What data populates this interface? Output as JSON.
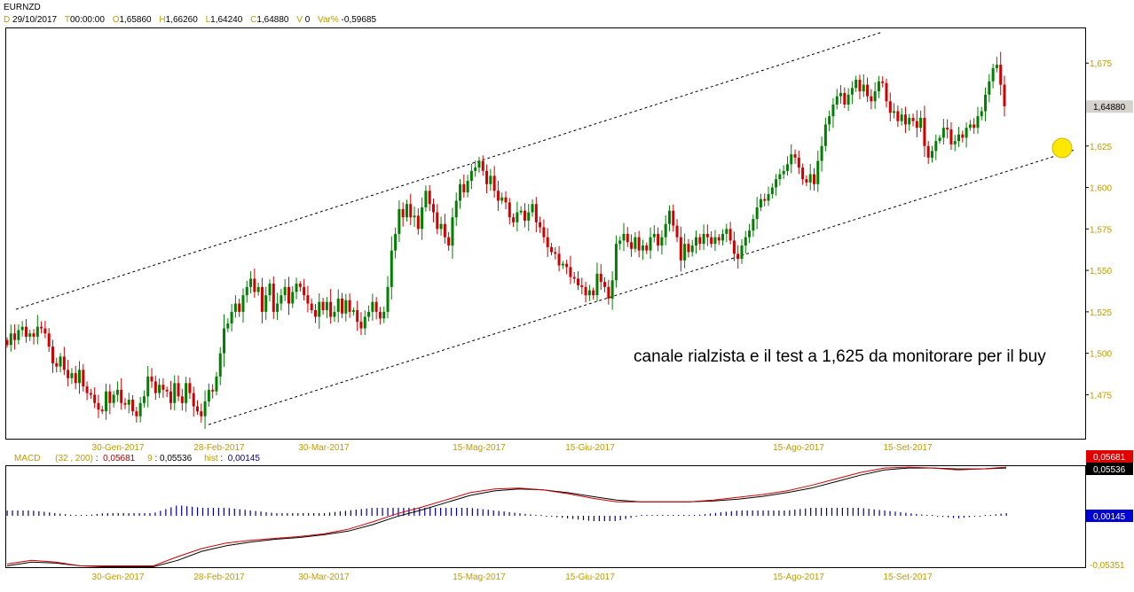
{
  "header": {
    "symbol": "EURNZD",
    "d_label": "D",
    "date": "29/10/2017",
    "t_label": "T",
    "time": "00:00:00",
    "o_label": "O",
    "open": "1,65860",
    "h_label": "H",
    "high": "1,66260",
    "l_label": "L",
    "low": "1,64240",
    "c_label": "C",
    "close": "1,64880",
    "v_label": "V",
    "volume": "0",
    "var_label": "Var%",
    "var": "-0,59685"
  },
  "macd_header": {
    "name": "MACD",
    "params": "(32 , 200)",
    "macd_value": "0,05681",
    "signal_label": "9",
    "signal_value": "0,05536",
    "hist_label": "hist",
    "hist_value": "0,00145"
  },
  "annotation": "canale rialzista e il test a 1,625 da monitorare per il buy",
  "colors": {
    "up": "#008000",
    "down": "#d00000",
    "axis_text": "#c09a00",
    "macd_line": "#d00000",
    "signal_line": "#000000",
    "histogram": "#000090",
    "marker": "#ffe800"
  },
  "chart_data": [
    {
      "type": "candlestick",
      "series_name": "EURNZD",
      "y_ticks": [
        "1,675",
        "1,650",
        "1,625",
        "1,600",
        "1,575",
        "1,550",
        "1,525",
        "1,500",
        "1,475"
      ],
      "y_tick_values": [
        1.675,
        1.65,
        1.625,
        1.6,
        1.575,
        1.55,
        1.525,
        1.5,
        1.475
      ],
      "ylim": [
        1.4485,
        1.6965
      ],
      "x_ticks": [
        "30-Gen-2017",
        "28-Feb-2017",
        "30-Mar-2017",
        "15-Mag-2017",
        "15-Giu-2017",
        "15-Ago-2017",
        "15-Set-2017"
      ],
      "last_price": "1,64880",
      "closes": [
        1.505,
        1.512,
        1.508,
        1.514,
        1.516,
        1.51,
        1.512,
        1.51,
        1.516,
        1.515,
        1.512,
        1.504,
        1.494,
        1.492,
        1.498,
        1.49,
        1.485,
        1.488,
        1.482,
        1.49,
        1.48,
        1.476,
        1.475,
        1.47,
        1.466,
        1.465,
        1.477,
        1.47,
        1.475,
        1.478,
        1.47,
        1.469,
        1.472,
        1.465,
        1.462,
        1.47,
        1.474,
        1.486,
        1.483,
        1.476,
        1.481,
        1.478,
        1.477,
        1.47,
        1.482,
        1.474,
        1.47,
        1.482,
        1.476,
        1.468,
        1.465,
        1.462,
        1.471,
        1.478,
        1.477,
        1.486,
        1.5,
        1.515,
        1.518,
        1.525,
        1.53,
        1.525,
        1.535,
        1.54,
        1.545,
        1.537,
        1.54,
        1.525,
        1.535,
        1.542,
        1.525,
        1.53,
        1.535,
        1.54,
        1.53,
        1.537,
        1.542,
        1.54,
        1.535,
        1.53,
        1.526,
        1.522,
        1.531,
        1.526,
        1.531,
        1.522,
        1.525,
        1.533,
        1.524,
        1.532,
        1.525,
        1.526,
        1.519,
        1.515,
        1.522,
        1.525,
        1.531,
        1.525,
        1.521,
        1.525,
        1.54,
        1.562,
        1.572,
        1.587,
        1.582,
        1.59,
        1.582,
        1.583,
        1.575,
        1.588,
        1.598,
        1.59,
        1.585,
        1.575,
        1.578,
        1.57,
        1.565,
        1.582,
        1.592,
        1.602,
        1.597,
        1.604,
        1.61,
        1.612,
        1.616,
        1.61,
        1.602,
        1.607,
        1.598,
        1.592,
        1.594,
        1.591,
        1.582,
        1.579,
        1.585,
        1.586,
        1.58,
        1.585,
        1.59,
        1.579,
        1.576,
        1.57,
        1.564,
        1.561,
        1.56,
        1.553,
        1.554,
        1.552,
        1.546,
        1.545,
        1.541,
        1.54,
        1.535,
        1.538,
        1.535,
        1.548,
        1.543,
        1.54,
        1.533,
        1.544,
        1.566,
        1.568,
        1.572,
        1.567,
        1.563,
        1.57,
        1.562,
        1.565,
        1.562,
        1.57,
        1.572,
        1.565,
        1.57,
        1.578,
        1.586,
        1.577,
        1.57,
        1.556,
        1.566,
        1.561,
        1.565,
        1.57,
        1.566,
        1.572,
        1.57,
        1.566,
        1.57,
        1.568,
        1.572,
        1.575,
        1.568,
        1.56,
        1.557,
        1.565,
        1.57,
        1.574,
        1.581,
        1.588,
        1.593,
        1.592,
        1.596,
        1.6,
        1.605,
        1.608,
        1.61,
        1.614,
        1.62,
        1.618,
        1.612,
        1.605,
        1.603,
        1.608,
        1.602,
        1.616,
        1.625,
        1.638,
        1.643,
        1.65,
        1.655,
        1.657,
        1.65,
        1.656,
        1.66,
        1.665,
        1.658,
        1.662,
        1.655,
        1.652,
        1.658,
        1.664,
        1.663,
        1.652,
        1.645,
        1.646,
        1.64,
        1.644,
        1.638,
        1.642,
        1.64,
        1.636,
        1.642,
        1.625,
        1.618,
        1.622,
        1.628,
        1.63,
        1.636,
        1.635,
        1.626,
        1.628,
        1.632,
        1.63,
        1.636,
        1.638,
        1.636,
        1.643,
        1.646,
        1.656,
        1.664,
        1.672,
        1.674,
        1.662,
        1.649
      ]
    },
    {
      "type": "line",
      "indicator": "MACD",
      "y_ticks": [
        "0,05681",
        "0,05536",
        "0,00145",
        "-0,05351"
      ],
      "x_ticks": [
        "30-Gen-2017",
        "28-Feb-2017",
        "30-Mar-2017",
        "15-Mag-2017",
        "15-Giu-2017",
        "15-Ago-2017",
        "15-Set-2017"
      ],
      "series": [
        {
          "name": "MACD",
          "values": [
            -0.05,
            -0.046,
            -0.048,
            -0.052,
            -0.052,
            -0.052,
            -0.052,
            -0.042,
            -0.033,
            -0.027,
            -0.024,
            -0.022,
            -0.02,
            -0.017,
            -0.012,
            -0.004,
            0.005,
            0.012,
            0.02,
            0.028,
            0.032,
            0.033,
            0.031,
            0.027,
            0.022,
            0.018,
            0.018,
            0.018,
            0.018,
            0.02,
            0.023,
            0.026,
            0.03,
            0.036,
            0.043,
            0.05,
            0.055,
            0.056,
            0.055,
            0.053,
            0.054,
            0.056
          ]
        },
        {
          "name": "signal",
          "values": [
            -0.052,
            -0.048,
            -0.049,
            -0.052,
            -0.053,
            -0.053,
            -0.053,
            -0.046,
            -0.036,
            -0.03,
            -0.026,
            -0.023,
            -0.021,
            -0.018,
            -0.014,
            -0.007,
            0.002,
            0.009,
            0.017,
            0.025,
            0.03,
            0.032,
            0.031,
            0.028,
            0.024,
            0.02,
            0.018,
            0.018,
            0.018,
            0.019,
            0.021,
            0.024,
            0.028,
            0.033,
            0.04,
            0.047,
            0.053,
            0.055,
            0.055,
            0.054,
            0.054,
            0.055
          ]
        }
      ]
    }
  ]
}
